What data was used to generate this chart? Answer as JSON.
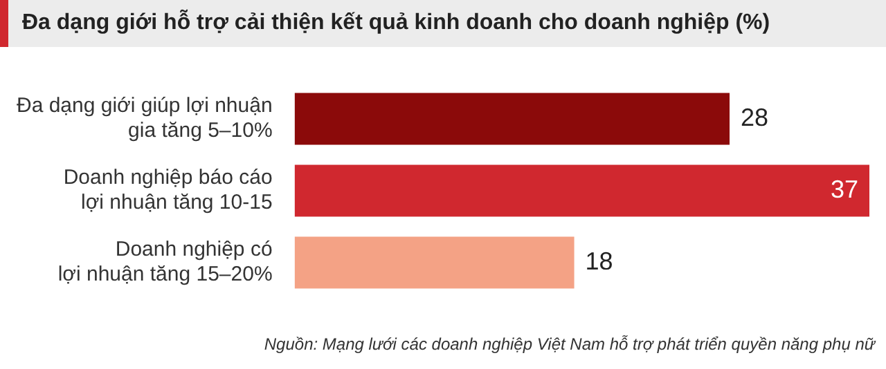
{
  "chart_data": {
    "type": "bar",
    "orientation": "horizontal",
    "title": "Đa dạng giới hỗ trợ cải thiện kết quả kinh doanh cho doanh nghiệp (%)",
    "categories": [
      "Đa dạng giới giúp lợi nhuận\ngia tăng 5–10%",
      "Doanh nghiệp báo cáo\nlợi nhuận tăng 10-15",
      "Doanh nghiệp có\nlợi nhuận tăng 15–20%"
    ],
    "values": [
      28,
      37,
      18
    ],
    "colors": [
      "#8b0a0a",
      "#d0282f",
      "#f4a285"
    ],
    "data_labels": true,
    "annotations": [
      "Nguồn: Mạng lưới các doanh nghiệp Việt Nam hỗ trợ phát triển quyền năng phụ nữ"
    ]
  }
}
